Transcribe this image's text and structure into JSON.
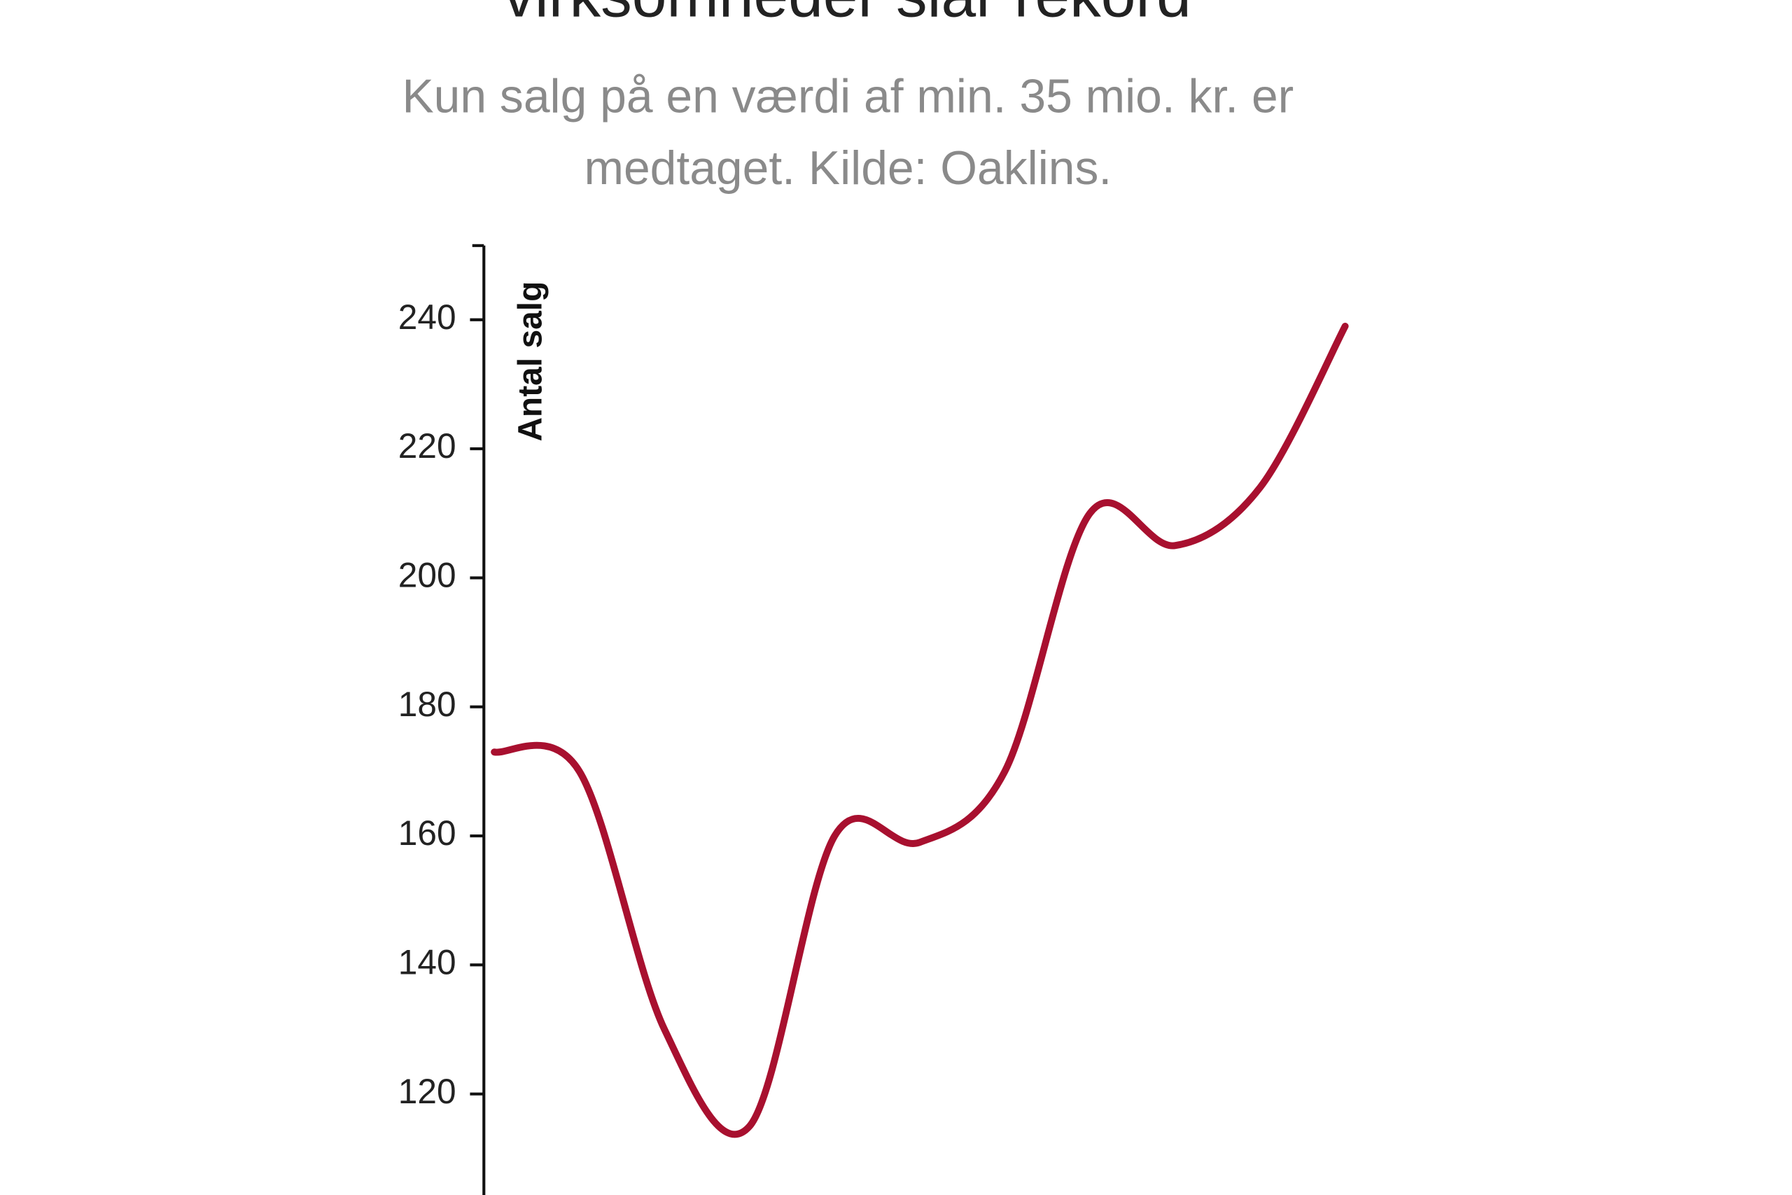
{
  "chart_data": {
    "type": "line",
    "title": "virksomheder slår rekord",
    "subtitle": "Kun salg på en værdi af min. 35 mio. kr. er medtaget. Kilde: Oaklins.",
    "y_label": "Antal salg",
    "categories": [
      null,
      null,
      null,
      null,
      null,
      null,
      null,
      null,
      null,
      null,
      null
    ],
    "series": [
      {
        "name": "Antal salg",
        "color": "#a8102f",
        "values": [
          173,
          170,
          130,
          115,
          160,
          159,
          170,
          210,
          205,
          214,
          239
        ]
      }
    ],
    "ylim": [
      104,
      251.5
    ],
    "yticks": [
      120,
      140,
      160,
      180,
      200,
      220,
      240
    ],
    "grid": false
  }
}
